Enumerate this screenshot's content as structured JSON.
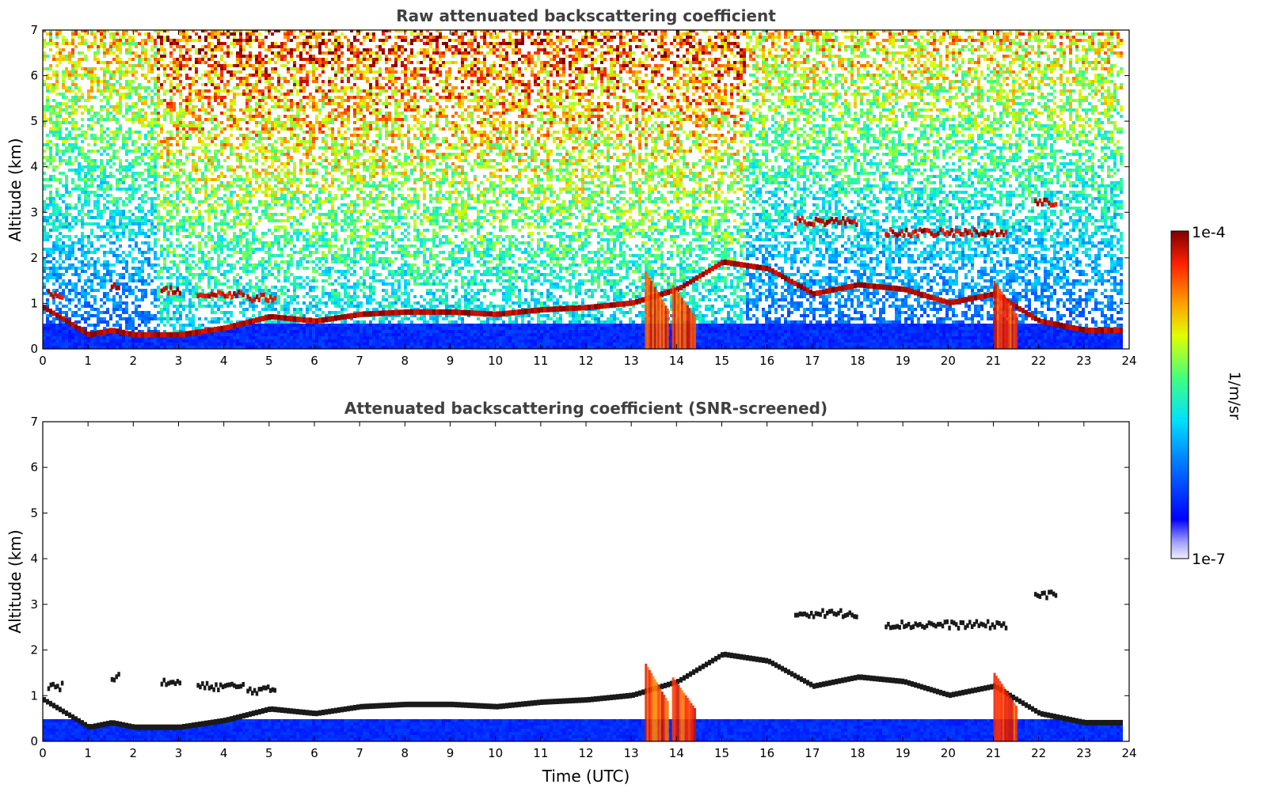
{
  "chart_data": [
    {
      "type": "heatmap",
      "title": "Raw attenuated backscattering coefficient",
      "xlabel": "",
      "ylabel": "Altitude (km)",
      "xlim": [
        0,
        24
      ],
      "ylim": [
        0,
        7
      ],
      "xticks": [
        "0",
        "1",
        "2",
        "3",
        "4",
        "5",
        "6",
        "7",
        "8",
        "9",
        "10",
        "11",
        "12",
        "13",
        "14",
        "15",
        "16",
        "17",
        "18",
        "19",
        "20",
        "21",
        "22",
        "23",
        "24"
      ],
      "yticks": [
        "0",
        "1",
        "2",
        "3",
        "4",
        "5",
        "6",
        "7"
      ],
      "grid": false,
      "colormap": "jet",
      "features": {
        "boundary_layer_top_km": [
          [
            0,
            0.9
          ],
          [
            1,
            0.3
          ],
          [
            1.5,
            0.4
          ],
          [
            2,
            0.3
          ],
          [
            3,
            0.3
          ],
          [
            4,
            0.45
          ],
          [
            5,
            0.7
          ],
          [
            6,
            0.6
          ],
          [
            7,
            0.75
          ],
          [
            8,
            0.8
          ],
          [
            9,
            0.8
          ],
          [
            10,
            0.75
          ],
          [
            11,
            0.85
          ],
          [
            12,
            0.9
          ],
          [
            13,
            1.0
          ],
          [
            14,
            1.3
          ],
          [
            15,
            1.9
          ],
          [
            16,
            1.75
          ],
          [
            17,
            1.2
          ],
          [
            18,
            1.4
          ],
          [
            19,
            1.3
          ],
          [
            20,
            1.0
          ],
          [
            21,
            1.2
          ],
          [
            22,
            0.6
          ],
          [
            23,
            0.4
          ],
          [
            24,
            0.4
          ]
        ],
        "elevated_layers": [
          {
            "t": [
              0.1,
              0.4
            ],
            "alt": 1.2
          },
          {
            "t": [
              1.5,
              1.7
            ],
            "alt": 1.4
          },
          {
            "t": [
              2.6,
              3.0
            ],
            "alt": 1.28
          },
          {
            "t": [
              3.4,
              4.4
            ],
            "alt": 1.2
          },
          {
            "t": [
              4.5,
              5.1
            ],
            "alt": 1.12
          },
          {
            "t": [
              16.6,
              18.0
            ],
            "alt": 2.8
          },
          {
            "t": [
              18.6,
              21.3
            ],
            "alt": 2.55
          },
          {
            "t": [
              21.9,
              22.4
            ],
            "alt": 3.2
          }
        ],
        "plumes": [
          {
            "t": [
              13.3,
              13.8
            ],
            "alt_top": 1.7
          },
          {
            "t": [
              13.9,
              14.4
            ],
            "alt_top": 1.4
          },
          {
            "t": [
              21.0,
              21.5
            ],
            "alt_top": 1.5
          }
        ]
      }
    },
    {
      "type": "heatmap",
      "title": "Attenuated backscattering coefficient (SNR-screened)",
      "xlabel": "Time (UTC)",
      "ylabel": "Altitude (km)",
      "xlim": [
        0,
        24
      ],
      "ylim": [
        0,
        7
      ],
      "xticks": [
        "0",
        "1",
        "2",
        "3",
        "4",
        "5",
        "6",
        "7",
        "8",
        "9",
        "10",
        "11",
        "12",
        "13",
        "14",
        "15",
        "16",
        "17",
        "18",
        "19",
        "20",
        "21",
        "22",
        "23",
        "24"
      ],
      "yticks": [
        "0",
        "1",
        "2",
        "3",
        "4",
        "5",
        "6",
        "7"
      ],
      "grid": false,
      "colormap": "jet"
    }
  ],
  "colorbar": {
    "label": "1/m/sr",
    "max_label": "1e-4",
    "min_label": "1e-7",
    "scale": "log",
    "range": [
      1e-07,
      0.0001
    ]
  },
  "colors": {
    "low_blue": "#0000ff",
    "high_red": "#800000",
    "title_gray": "#404040"
  }
}
